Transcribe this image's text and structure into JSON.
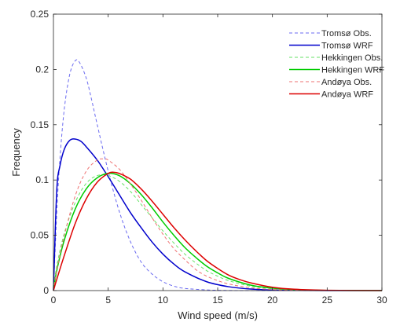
{
  "chart_data": {
    "type": "line",
    "title": "",
    "xlabel": "Wind speed (m/s)",
    "ylabel": "Frequency",
    "xlim": [
      0,
      30
    ],
    "ylim": [
      0,
      0.25
    ],
    "xticks": [
      0,
      5,
      10,
      15,
      20,
      25,
      30
    ],
    "yticks": [
      0,
      0.05,
      0.1,
      0.15,
      0.2,
      0.25
    ],
    "xtick_labels": [
      "0",
      "5",
      "10",
      "15",
      "20",
      "25",
      "30"
    ],
    "ytick_labels": [
      "0",
      "0.05",
      "0.1",
      "0.15",
      "0.2",
      "0.25"
    ],
    "grid": false,
    "legend_position": "top-right",
    "series": [
      {
        "name": "Tromsø Obs.",
        "color": "#6a6af0",
        "dash": "dashed",
        "x": [
          0,
          0.3,
          0.6,
          1.0,
          1.5,
          2.0,
          2.4,
          3.0,
          3.5,
          4.0,
          5.0,
          6.0,
          7.0,
          8.0,
          9.0,
          10.0,
          11.0,
          12.0,
          14.0,
          16.0,
          18.0,
          20.0,
          30.0
        ],
        "y": [
          0,
          0.07,
          0.12,
          0.165,
          0.196,
          0.208,
          0.206,
          0.192,
          0.172,
          0.15,
          0.108,
          0.072,
          0.045,
          0.026,
          0.015,
          0.008,
          0.004,
          0.002,
          0.0006,
          0.0001,
          0,
          0,
          0
        ]
      },
      {
        "name": "Tromsø WRF",
        "color": "#0000cc",
        "dash": "solid",
        "x": [
          0,
          0.3,
          0.6,
          1.0,
          1.5,
          2.0,
          2.5,
          3.0,
          4.0,
          5.0,
          6.0,
          7.0,
          8.0,
          9.0,
          10.0,
          11.0,
          12.0,
          14.0,
          16.0,
          18.0,
          20.0,
          22.0,
          25.0,
          30.0
        ],
        "y": [
          0,
          0.09,
          0.113,
          0.128,
          0.136,
          0.137,
          0.135,
          0.13,
          0.118,
          0.103,
          0.087,
          0.071,
          0.057,
          0.044,
          0.033,
          0.024,
          0.017,
          0.008,
          0.0035,
          0.0014,
          0.0005,
          0.0002,
          0,
          0
        ]
      },
      {
        "name": "Hekkingen Obs.",
        "color": "#66e266",
        "dash": "dashed",
        "x": [
          0,
          0.3,
          1.0,
          2.0,
          3.0,
          4.0,
          5.0,
          6.0,
          7.0,
          8.0,
          9.0,
          10.0,
          11.0,
          12.0,
          13.0,
          14.0,
          15.0,
          16.0,
          18.0,
          20.0,
          22.0,
          25.0,
          30.0
        ],
        "y": [
          0,
          0.022,
          0.052,
          0.08,
          0.097,
          0.104,
          0.104,
          0.099,
          0.09,
          0.078,
          0.066,
          0.054,
          0.043,
          0.033,
          0.025,
          0.018,
          0.013,
          0.009,
          0.004,
          0.0017,
          0.0007,
          0.0002,
          0
        ]
      },
      {
        "name": "Hekkingen WRF",
        "color": "#00cc00",
        "dash": "solid",
        "x": [
          0,
          0.3,
          1.0,
          2.0,
          3.0,
          4.0,
          5.0,
          6.0,
          7.0,
          8.0,
          9.0,
          10.0,
          11.0,
          12.0,
          13.0,
          14.0,
          15.0,
          16.0,
          18.0,
          20.0,
          22.0,
          25.0,
          30.0
        ],
        "y": [
          0,
          0.018,
          0.046,
          0.074,
          0.092,
          0.102,
          0.106,
          0.104,
          0.097,
          0.087,
          0.075,
          0.062,
          0.05,
          0.039,
          0.03,
          0.022,
          0.016,
          0.011,
          0.005,
          0.0022,
          0.0009,
          0.0002,
          0
        ]
      },
      {
        "name": "Andøya Obs.",
        "color": "#ee7070",
        "dash": "dashed",
        "x": [
          0,
          0.3,
          1.0,
          2.0,
          3.0,
          4.0,
          4.7,
          5.0,
          6.0,
          7.0,
          8.0,
          9.0,
          10.0,
          11.0,
          12.0,
          13.0,
          14.0,
          15.0,
          16.0,
          18.0,
          20.0,
          22.0,
          25.0,
          30.0
        ],
        "y": [
          0,
          0.018,
          0.05,
          0.086,
          0.108,
          0.118,
          0.119,
          0.118,
          0.11,
          0.097,
          0.082,
          0.066,
          0.051,
          0.038,
          0.028,
          0.019,
          0.013,
          0.009,
          0.006,
          0.0025,
          0.001,
          0.0004,
          0.0001,
          0
        ]
      },
      {
        "name": "Andøya WRF",
        "color": "#dd0000",
        "dash": "solid",
        "x": [
          0,
          0.3,
          1.0,
          2.0,
          3.0,
          4.0,
          5.0,
          5.5,
          6.0,
          7.0,
          8.0,
          9.0,
          10.0,
          11.0,
          12.0,
          13.0,
          14.0,
          15.0,
          16.0,
          17.0,
          18.0,
          20.0,
          22.0,
          25.0,
          30.0
        ],
        "y": [
          0,
          0.01,
          0.032,
          0.061,
          0.083,
          0.098,
          0.106,
          0.107,
          0.106,
          0.101,
          0.092,
          0.081,
          0.069,
          0.057,
          0.046,
          0.036,
          0.027,
          0.02,
          0.014,
          0.01,
          0.007,
          0.003,
          0.0012,
          0.0003,
          0
        ]
      }
    ]
  }
}
